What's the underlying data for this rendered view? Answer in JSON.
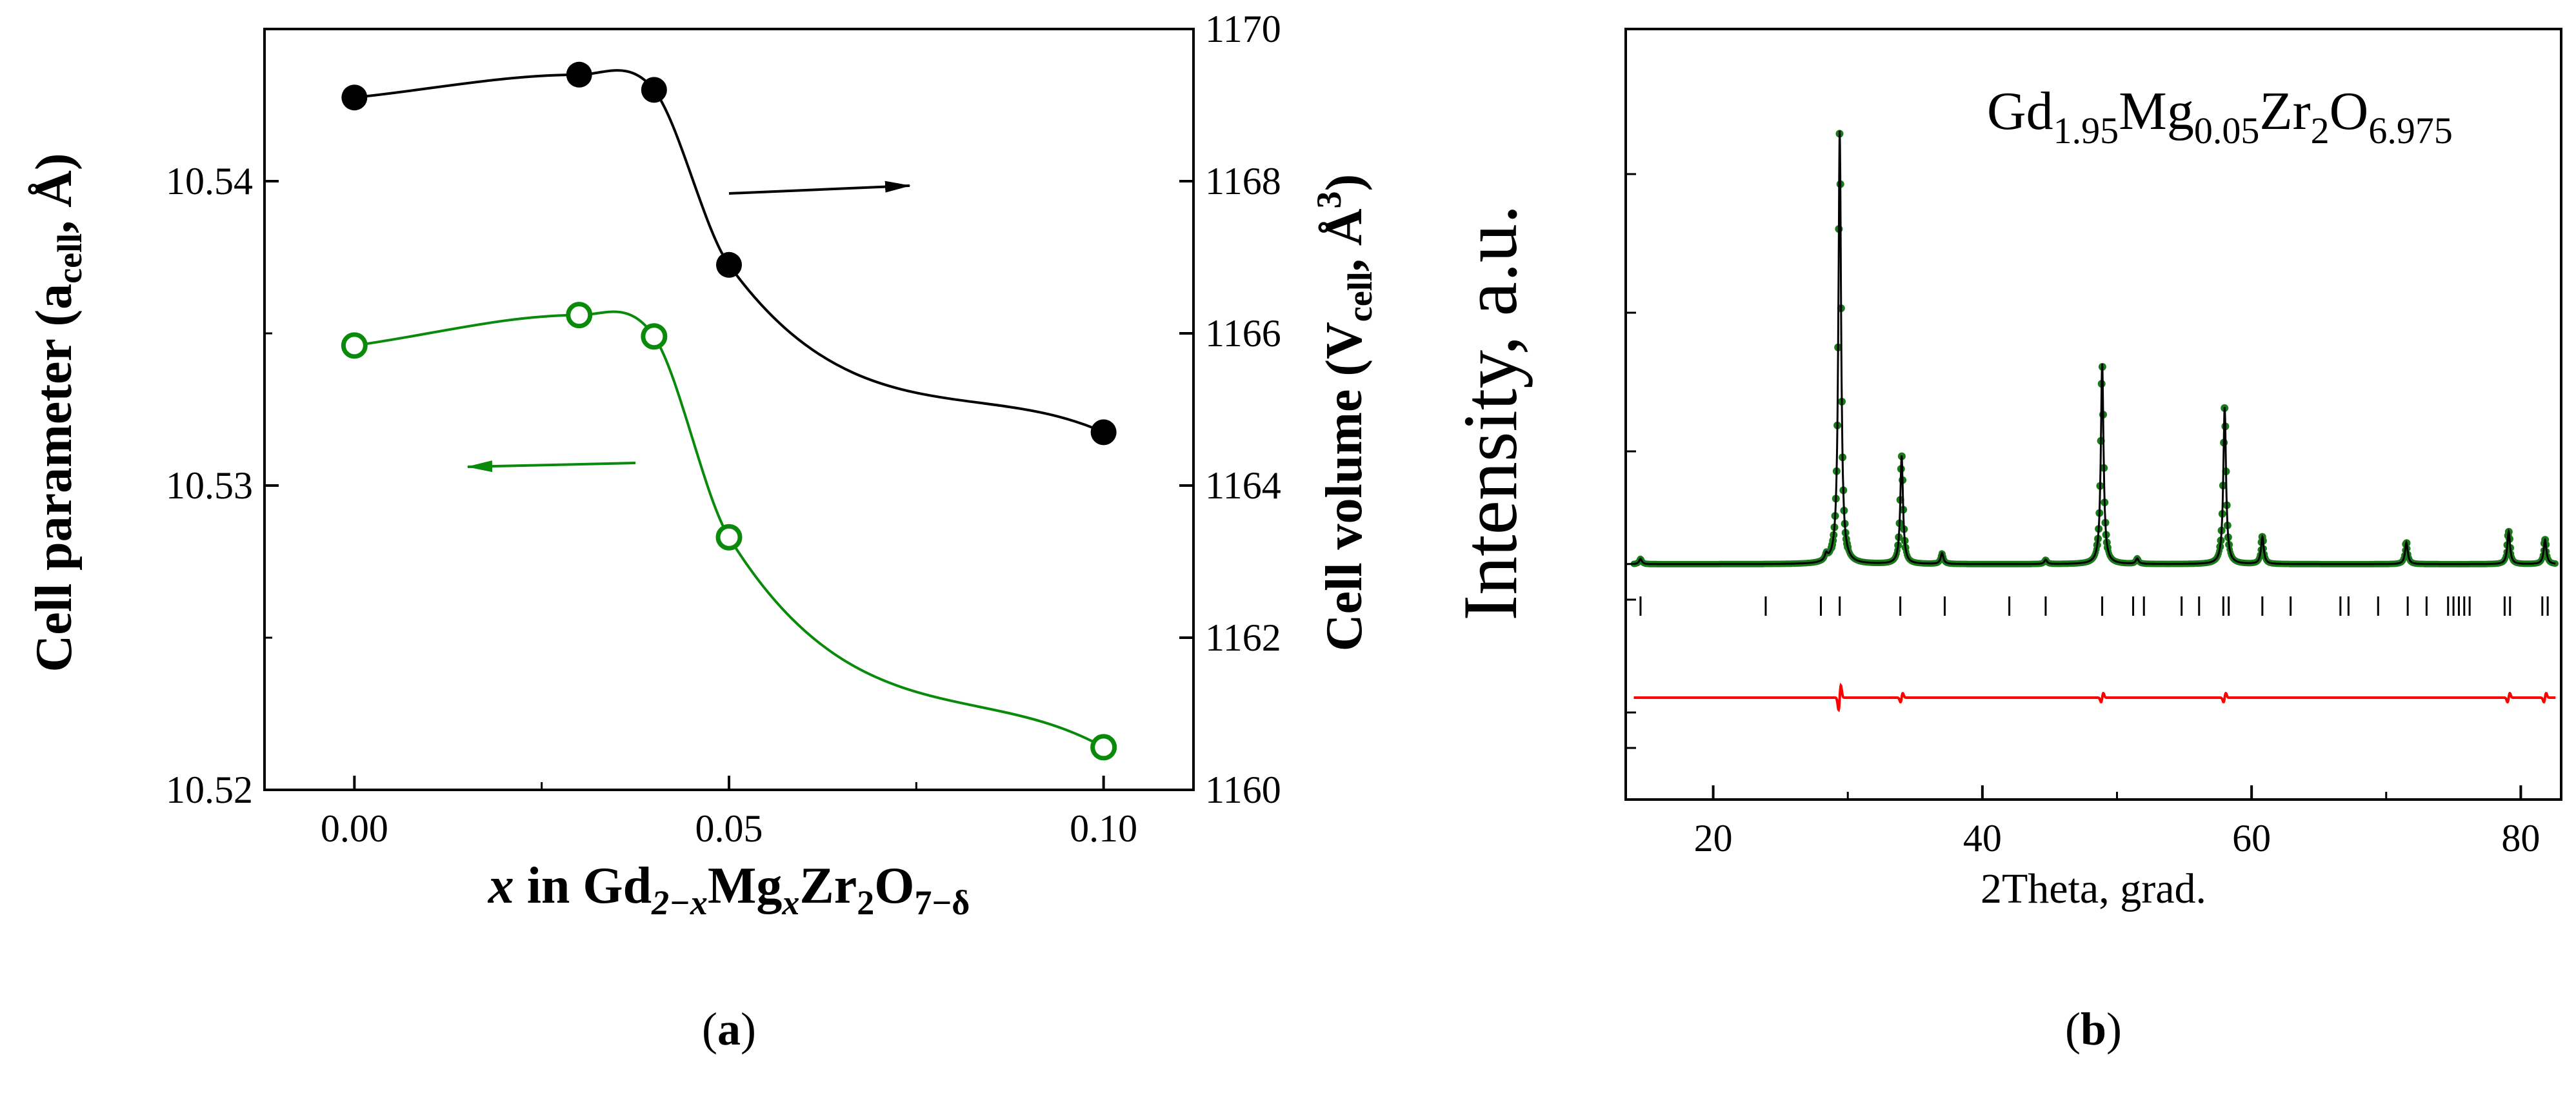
{
  "colors": {
    "volume": "#000000",
    "parameter": "#0a8a0a",
    "observed": "#1a7a1a",
    "calc": "#000000",
    "difference": "#ff0000",
    "ticks": "#000000"
  },
  "chart_data": [
    {
      "type": "line",
      "panel_label_text": "a",
      "panel_label": "(a)",
      "xlabel_parts": {
        "x": "x",
        "in": " in Gd",
        "sub1": "2−x",
        "mg": "Mg",
        "subx": "x",
        "zr": "Zr",
        "sub2": "2",
        "o": "O",
        "sub3": "7−δ"
      },
      "xlabel": "x in Gd2−xMgxZr2O7−δ",
      "ylabel_left": "Cell parameter (acell, Å)",
      "ylabel_left_parts": {
        "main": "Cell parameter (a",
        "sub": "cell",
        "tail": ", Å)"
      },
      "ylabel_right": "Cell volume (Vcell, Å3)",
      "ylabel_right_parts": {
        "main": "Cell volume (V",
        "sub": "cell",
        "mid": ", Å",
        "sup": "3",
        "tail": ")"
      },
      "xlim": [
        -0.012,
        0.112
      ],
      "ylim_left": [
        10.52,
        10.545
      ],
      "ylim_right": [
        1160,
        1170
      ],
      "x_ticks": [
        0.0,
        0.05,
        0.1
      ],
      "x_tick_labels": [
        "0.00",
        "0.05",
        "0.10"
      ],
      "y_left_ticks": [
        10.52,
        10.53,
        10.54
      ],
      "y_left_tick_labels": [
        "10.52",
        "10.53",
        "10.54"
      ],
      "y_right_ticks": [
        1160,
        1162,
        1164,
        1166,
        1168,
        1170
      ],
      "y_right_tick_labels": [
        "1160",
        "1162",
        "1164",
        "1166",
        "1168",
        "1170"
      ],
      "series": [
        {
          "name": "Cell volume",
          "axis": "right",
          "marker": "filled-circle",
          "x": [
            0.0,
            0.03,
            0.04,
            0.05,
            0.1
          ],
          "values": [
            1169.1,
            1169.4,
            1169.2,
            1166.9,
            1164.7
          ]
        },
        {
          "name": "Cell parameter",
          "axis": "left",
          "marker": "open-circle",
          "x": [
            0.0,
            0.03,
            0.04,
            0.05,
            0.1
          ],
          "values": [
            10.5346,
            10.5356,
            10.5349,
            10.5283,
            10.5214
          ]
        }
      ],
      "annotations": [
        {
          "type": "arrow",
          "points_to": "right axis",
          "series": "Cell volume"
        },
        {
          "type": "arrow",
          "points_to": "left axis",
          "series": "Cell parameter"
        }
      ]
    },
    {
      "type": "line",
      "panel_label_text": "b",
      "panel_label": "(b)",
      "xlabel": "2Theta, grad.",
      "ylabel": "Intensity, a.u.",
      "formula_parts": {
        "gd": "Gd",
        "s1": "1.95",
        "mg": "Mg",
        "s2": "0.05",
        "zr": "Zr",
        "s3": "2",
        "o": "O",
        "s4": "6.975"
      },
      "formula": "Gd1.95Mg0.05Zr2O6.975",
      "xlim": [
        13.5,
        83
      ],
      "ylim": [
        -1,
        10
      ],
      "x_ticks": [
        20,
        40,
        60,
        80
      ],
      "x_tick_labels": [
        "20",
        "40",
        "60",
        "80"
      ],
      "peaks": [
        {
          "x": 14.6,
          "height": 0.1
        },
        {
          "x": 28.4,
          "height": 0.12
        },
        {
          "x": 29.4,
          "height": 8.0
        },
        {
          "x": 34.0,
          "height": 2.0
        },
        {
          "x": 37.0,
          "height": 0.2
        },
        {
          "x": 44.7,
          "height": 0.08
        },
        {
          "x": 48.9,
          "height": 3.7
        },
        {
          "x": 51.5,
          "height": 0.1
        },
        {
          "x": 58.0,
          "height": 2.9
        },
        {
          "x": 60.8,
          "height": 0.5
        },
        {
          "x": 71.5,
          "height": 0.4
        },
        {
          "x": 79.1,
          "height": 0.6
        },
        {
          "x": 81.8,
          "height": 0.45
        }
      ],
      "bragg_positions": [
        14.6,
        23.9,
        28.0,
        29.4,
        33.9,
        37.2,
        42.0,
        44.7,
        48.9,
        51.2,
        52.0,
        54.8,
        56.1,
        57.9,
        58.3,
        60.8,
        62.9,
        66.6,
        67.2,
        69.4,
        71.6,
        73.0,
        74.6,
        75.0,
        75.4,
        75.8,
        76.2,
        78.8,
        79.2,
        81.6,
        82.0
      ],
      "difference_spikes": [
        29.4,
        34.0,
        48.9,
        58.0,
        79.1,
        81.8
      ]
    }
  ]
}
